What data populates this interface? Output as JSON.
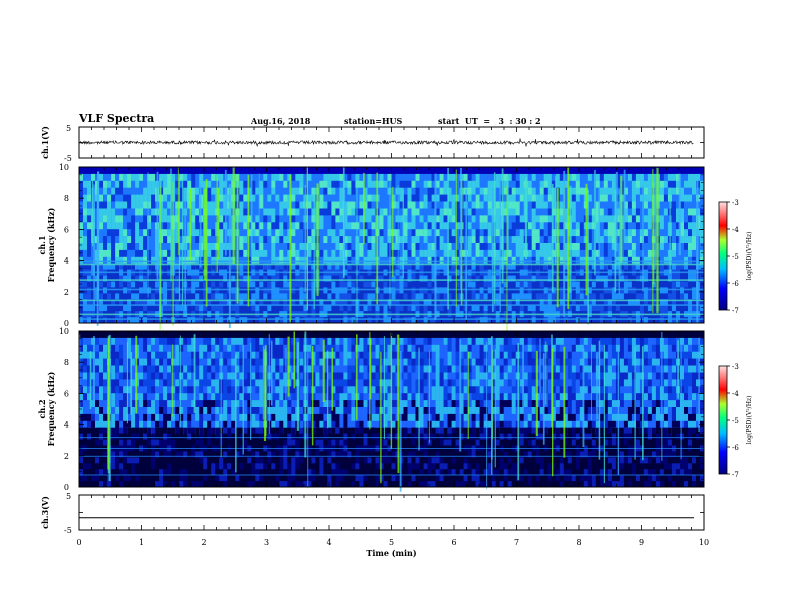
{
  "header": {
    "title": "VLF Spectra",
    "date": "Aug.16, 2018",
    "station": "station=HUS",
    "start": "start  UT  =   3  : 30 : 2"
  },
  "colors": {
    "background": "#00008b",
    "low": "#0000cd",
    "mid_low": "#1e90ff",
    "mid": "#40e0d0",
    "high": "#7cfc00",
    "hot": "#ff0000",
    "trace": "#000000"
  },
  "chart_data": [
    {
      "type": "line",
      "name": "waveform-ch1",
      "ylabel": "ch.1(V)",
      "yticks": [
        "5",
        "-5"
      ],
      "ylim": [
        -5,
        5
      ],
      "xlim": [
        0,
        10
      ],
      "description_level": 0.0
    },
    {
      "type": "heatmap",
      "name": "spectrogram-ch1",
      "ylabel_top": "ch.1",
      "ylabel": "Frequency  (kHz)",
      "yticks": [
        "0",
        "2",
        "4",
        "6",
        "8",
        "10"
      ],
      "ylim": [
        0,
        10
      ],
      "xlim": [
        0,
        10
      ],
      "colorbar": {
        "label": "log(PSD)(V²/Hz)",
        "ticks": [
          "-3",
          "-4",
          "-5",
          "-6",
          "-7"
        ],
        "range": [
          -7,
          -3
        ]
      }
    },
    {
      "type": "heatmap",
      "name": "spectrogram-ch2",
      "ylabel_top": "ch.2",
      "ylabel": "Frequency  (kHz)",
      "yticks": [
        "0",
        "2",
        "4",
        "6",
        "8",
        "10"
      ],
      "ylim": [
        0,
        10
      ],
      "xlim": [
        0,
        10
      ],
      "colorbar": {
        "label": "log(PSD)(V²/Hz)",
        "ticks": [
          "-3",
          "-4",
          "-5",
          "-6",
          "-7"
        ],
        "range": [
          -7,
          -3
        ]
      }
    },
    {
      "type": "line",
      "name": "waveform-ch3",
      "ylabel": "ch.3(V)",
      "yticks": [
        "5",
        "-5"
      ],
      "ylim": [
        -5,
        5
      ],
      "xlim": [
        0,
        10
      ],
      "description_level": -1.5
    }
  ],
  "xaxis": {
    "label": "Time  (min)",
    "ticks": [
      "0",
      "1",
      "2",
      "3",
      "4",
      "5",
      "6",
      "7",
      "8",
      "9",
      "10"
    ]
  }
}
